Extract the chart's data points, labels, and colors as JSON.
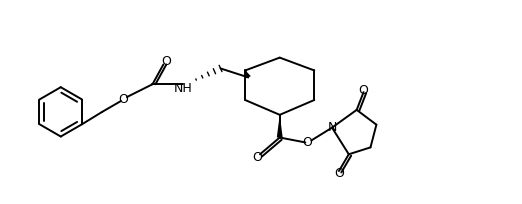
{
  "bg_color": "#ffffff",
  "lw": 1.4,
  "figsize": [
    5.22,
    2.04
  ],
  "dpi": 100,
  "xlim": [
    0,
    522
  ],
  "ylim": [
    0,
    204
  ]
}
